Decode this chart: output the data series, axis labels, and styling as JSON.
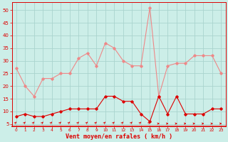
{
  "hours": [
    0,
    1,
    2,
    3,
    4,
    5,
    6,
    7,
    8,
    9,
    10,
    11,
    12,
    13,
    14,
    15,
    16,
    17,
    18,
    19,
    20,
    21,
    22,
    23
  ],
  "wind_mean": [
    8,
    9,
    8,
    8,
    9,
    10,
    11,
    11,
    11,
    11,
    16,
    16,
    14,
    14,
    9,
    6,
    16,
    9,
    16,
    9,
    9,
    9,
    11,
    11
  ],
  "wind_gust": [
    27,
    20,
    16,
    23,
    23,
    25,
    25,
    31,
    33,
    28,
    37,
    35,
    30,
    28,
    28,
    51,
    16,
    28,
    29,
    29,
    32,
    32,
    32,
    25
  ],
  "xlabel": "Vent moyen/en rafales ( km/h )",
  "xlim": [
    0,
    23
  ],
  "ylim": [
    4,
    53
  ],
  "yticks": [
    5,
    10,
    15,
    20,
    25,
    30,
    35,
    40,
    45,
    50
  ],
  "xticks": [
    0,
    1,
    2,
    3,
    4,
    5,
    6,
    7,
    8,
    9,
    10,
    11,
    12,
    13,
    14,
    15,
    16,
    17,
    18,
    19,
    20,
    21,
    22,
    23
  ],
  "bg_color": "#cceee8",
  "grid_color": "#aad4ce",
  "line_mean_color": "#dd0000",
  "line_gust_color": "#ee8888",
  "arrow_ne_until": 15,
  "arrow_color": "#dd0000"
}
